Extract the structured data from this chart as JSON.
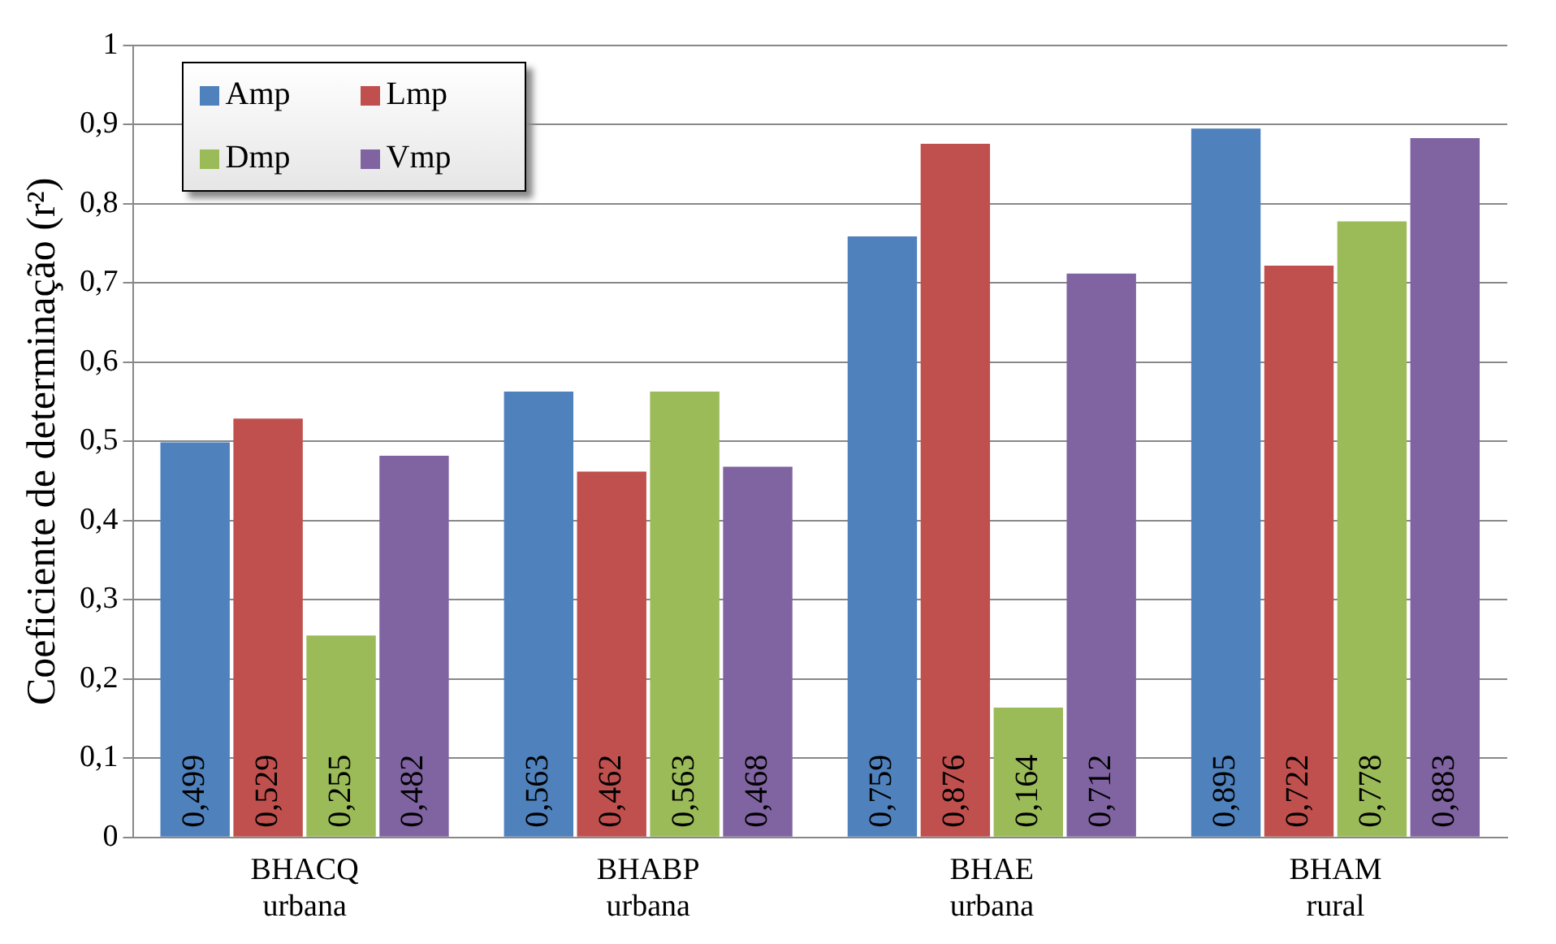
{
  "chart_data": {
    "type": "bar",
    "ylabel": "Coeficiente de determinação (r²)",
    "categories": [
      "BHACQ urbana",
      "BHABP urbana",
      "BHAE urbana",
      "BHAM rural"
    ],
    "series": [
      {
        "name": "Amp",
        "color": "#4f81bd",
        "values": [
          0.499,
          0.563,
          0.759,
          0.895
        ],
        "value_labels": [
          "0,499",
          "0,563",
          "0,759",
          "0,895"
        ]
      },
      {
        "name": "Lmp",
        "color": "#c0504d",
        "values": [
          0.529,
          0.462,
          0.876,
          0.722
        ],
        "value_labels": [
          "0,529",
          "0,462",
          "0,876",
          "0,722"
        ]
      },
      {
        "name": "Dmp",
        "color": "#9bbb59",
        "values": [
          0.255,
          0.563,
          0.164,
          0.778
        ],
        "value_labels": [
          "0,255",
          "0,563",
          "0,164",
          "0,778"
        ]
      },
      {
        "name": "Vmp",
        "color": "#8064a2",
        "values": [
          0.482,
          0.468,
          0.712,
          0.883
        ],
        "value_labels": [
          "0,482",
          "0,468",
          "0,712",
          "0,883"
        ]
      }
    ],
    "ylim": [
      0,
      1
    ],
    "yticks": [
      0,
      {
        "value": 0.1,
        "label": "0,1"
      },
      {
        "value": 0.2,
        "label": "0,2"
      },
      {
        "value": 0.3,
        "label": "0,3"
      },
      {
        "value": 0.4,
        "label": "0,4"
      },
      {
        "value": 0.5,
        "label": "0,5"
      },
      {
        "value": 0.6,
        "label": "0,6"
      },
      {
        "value": 0.7,
        "label": "0,7"
      },
      {
        "value": 0.8,
        "label": "0,8"
      },
      {
        "value": 0.9,
        "label": "0,9"
      },
      1
    ],
    "grid": "y",
    "legend": "top left"
  }
}
